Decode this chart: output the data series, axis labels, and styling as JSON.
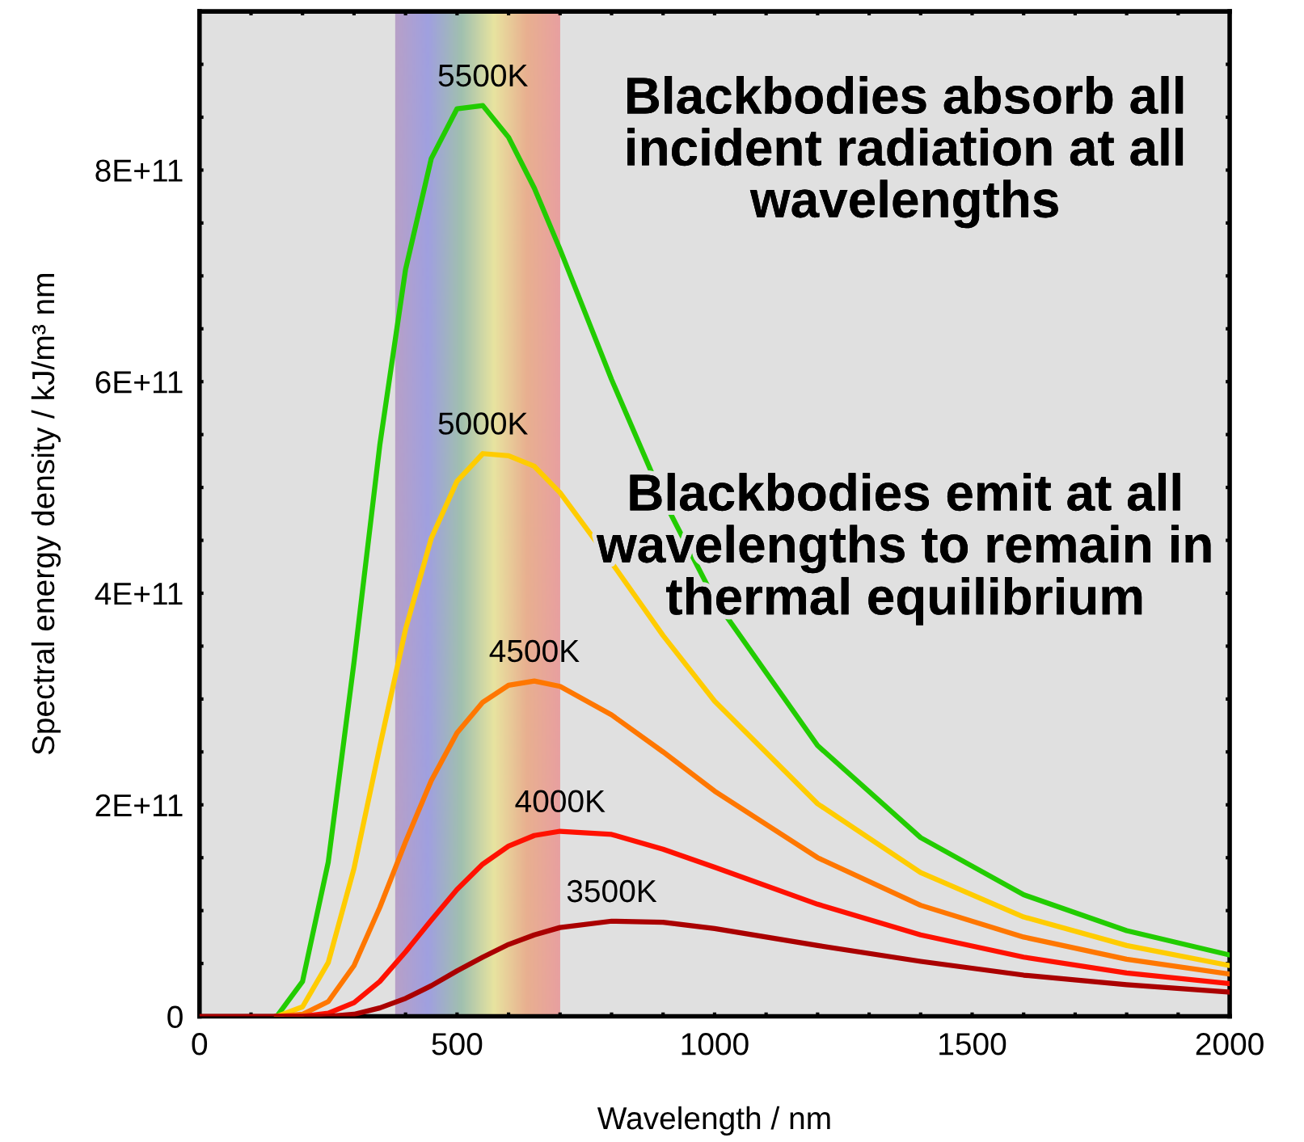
{
  "chart_data": {
    "type": "line",
    "xlabel": "Wavelength / nm",
    "ylabel": "Spectral energy density / kJ/m³ nm",
    "x": [
      0,
      100,
      150,
      200,
      250,
      300,
      350,
      400,
      450,
      500,
      550,
      600,
      650,
      700,
      800,
      900,
      1000,
      1200,
      1400,
      1600,
      1800,
      2000
    ],
    "series": [
      {
        "name": "5500K",
        "color": "#22cc00",
        "values": [
          null,
          null,
          0,
          33000000000.0,
          146000000000.0,
          335000000000.0,
          540000000000.0,
          706000000000.0,
          811000000000.0,
          858000000000.0,
          861000000000.0,
          831000000000.0,
          783000000000.0,
          725000000000.0,
          602000000000.0,
          489000000000.0,
          394000000000.0,
          256000000000.0,
          169000000000.0,
          115000000000.0,
          81000000000.0,
          58000000000.0
        ]
      },
      {
        "name": "5000K",
        "color": "#ffcc00",
        "values": [
          null,
          null,
          0,
          9000000000.0,
          51000000000.0,
          140000000000.0,
          255000000000.0,
          366000000000.0,
          452000000000.0,
          506000000000.0,
          532000000000.0,
          530000000000.0,
          520000000000.0,
          495000000000.0,
          429000000000.0,
          360000000000.0,
          298000000000.0,
          201000000000.0,
          136000000000.0,
          94000000000.0,
          67000000000.0,
          48000000000.0
        ]
      },
      {
        "name": "4500K",
        "color": "#ff7700",
        "values": [
          null,
          null,
          0,
          2000000000.0,
          14000000000.0,
          48000000000.0,
          103000000000.0,
          165000000000.0,
          223000000000.0,
          268000000000.0,
          297000000000.0,
          313000000000.0,
          317000000000.0,
          312000000000.0,
          285000000000.0,
          250000000000.0,
          213000000000.0,
          150000000000.0,
          105000000000.0,
          75000000000.0,
          54000000000.0,
          40000000000.0
        ]
      },
      {
        "name": "4000K",
        "color": "#ff1100",
        "values": [
          null,
          null,
          0,
          0,
          3000000000.0,
          13000000000.0,
          33000000000.0,
          61000000000.0,
          91000000000.0,
          120000000000.0,
          144000000000.0,
          161000000000.0,
          171000000000.0,
          175000000000.0,
          172000000000.0,
          158000000000.0,
          141000000000.0,
          106000000000.0,
          77000000000.0,
          56000000000.0,
          41000000000.0,
          31000000000.0
        ]
      },
      {
        "name": "3500K",
        "color": "#aa0000",
        "values": [
          0,
          0,
          0,
          0,
          0,
          2000000000.0,
          8000000000.0,
          17000000000.0,
          29000000000.0,
          43000000000.0,
          56000000000.0,
          68000000000.0,
          77000000000.0,
          84000000000.0,
          90000000000.0,
          89000000000.0,
          83000000000.0,
          67000000000.0,
          52000000000.0,
          39000000000.0,
          30000000000.0,
          23000000000.0
        ]
      }
    ],
    "xlim": [
      0,
      2000
    ],
    "xticks": [
      0,
      {
        "value": 100,
        "label": null
      },
      {
        "value": 200,
        "label": null
      },
      {
        "value": 300,
        "label": null
      },
      {
        "value": 400,
        "label": null
      },
      500,
      {
        "value": 600,
        "label": null
      },
      {
        "value": 700,
        "label": null
      },
      {
        "value": 800,
        "label": null
      },
      {
        "value": 900,
        "label": null
      },
      1000,
      {
        "value": 1100,
        "label": null
      },
      {
        "value": 1200,
        "label": null
      },
      {
        "value": 1300,
        "label": null
      },
      {
        "value": 1400,
        "label": null
      },
      1500,
      {
        "value": 1600,
        "label": null
      },
      {
        "value": 1700,
        "label": null
      },
      {
        "value": 1800,
        "label": null
      },
      {
        "value": 1900,
        "label": null
      },
      2000
    ],
    "ylim": [
      0,
      950000000000.0
    ],
    "yticks": [
      0,
      {
        "value": 50000000000.0,
        "label": null
      },
      {
        "value": 100000000000.0,
        "label": null
      },
      {
        "value": 150000000000.0,
        "label": null
      },
      {
        "value": 200000000000.0,
        "label": "2E+11"
      },
      {
        "value": 250000000000.0,
        "label": null
      },
      {
        "value": 300000000000.0,
        "label": null
      },
      {
        "value": 350000000000.0,
        "label": null
      },
      {
        "value": 400000000000.0,
        "label": "4E+11"
      },
      {
        "value": 450000000000.0,
        "label": null
      },
      {
        "value": 500000000000.0,
        "label": null
      },
      {
        "value": 550000000000.0,
        "label": null
      },
      {
        "value": 600000000000.0,
        "label": "6E+11"
      },
      {
        "value": 650000000000.0,
        "label": null
      },
      {
        "value": 700000000000.0,
        "label": null
      },
      {
        "value": 750000000000.0,
        "label": null
      },
      {
        "value": 800000000000.0,
        "label": "8E+11"
      },
      {
        "value": 850000000000.0,
        "label": null
      },
      {
        "value": 900000000000.0,
        "label": null
      }
    ],
    "bands": [
      {
        "axis": "x",
        "from": 380,
        "to": 700
      }
    ],
    "annotations": [
      "Blackbodies absorb all incident radiation at all wavelengths",
      "Blackbodies emit at all wavelengths to remain in thermal equilibrium"
    ],
    "grid": false,
    "legend": false,
    "marker": "none",
    "line_style": "solid"
  }
}
